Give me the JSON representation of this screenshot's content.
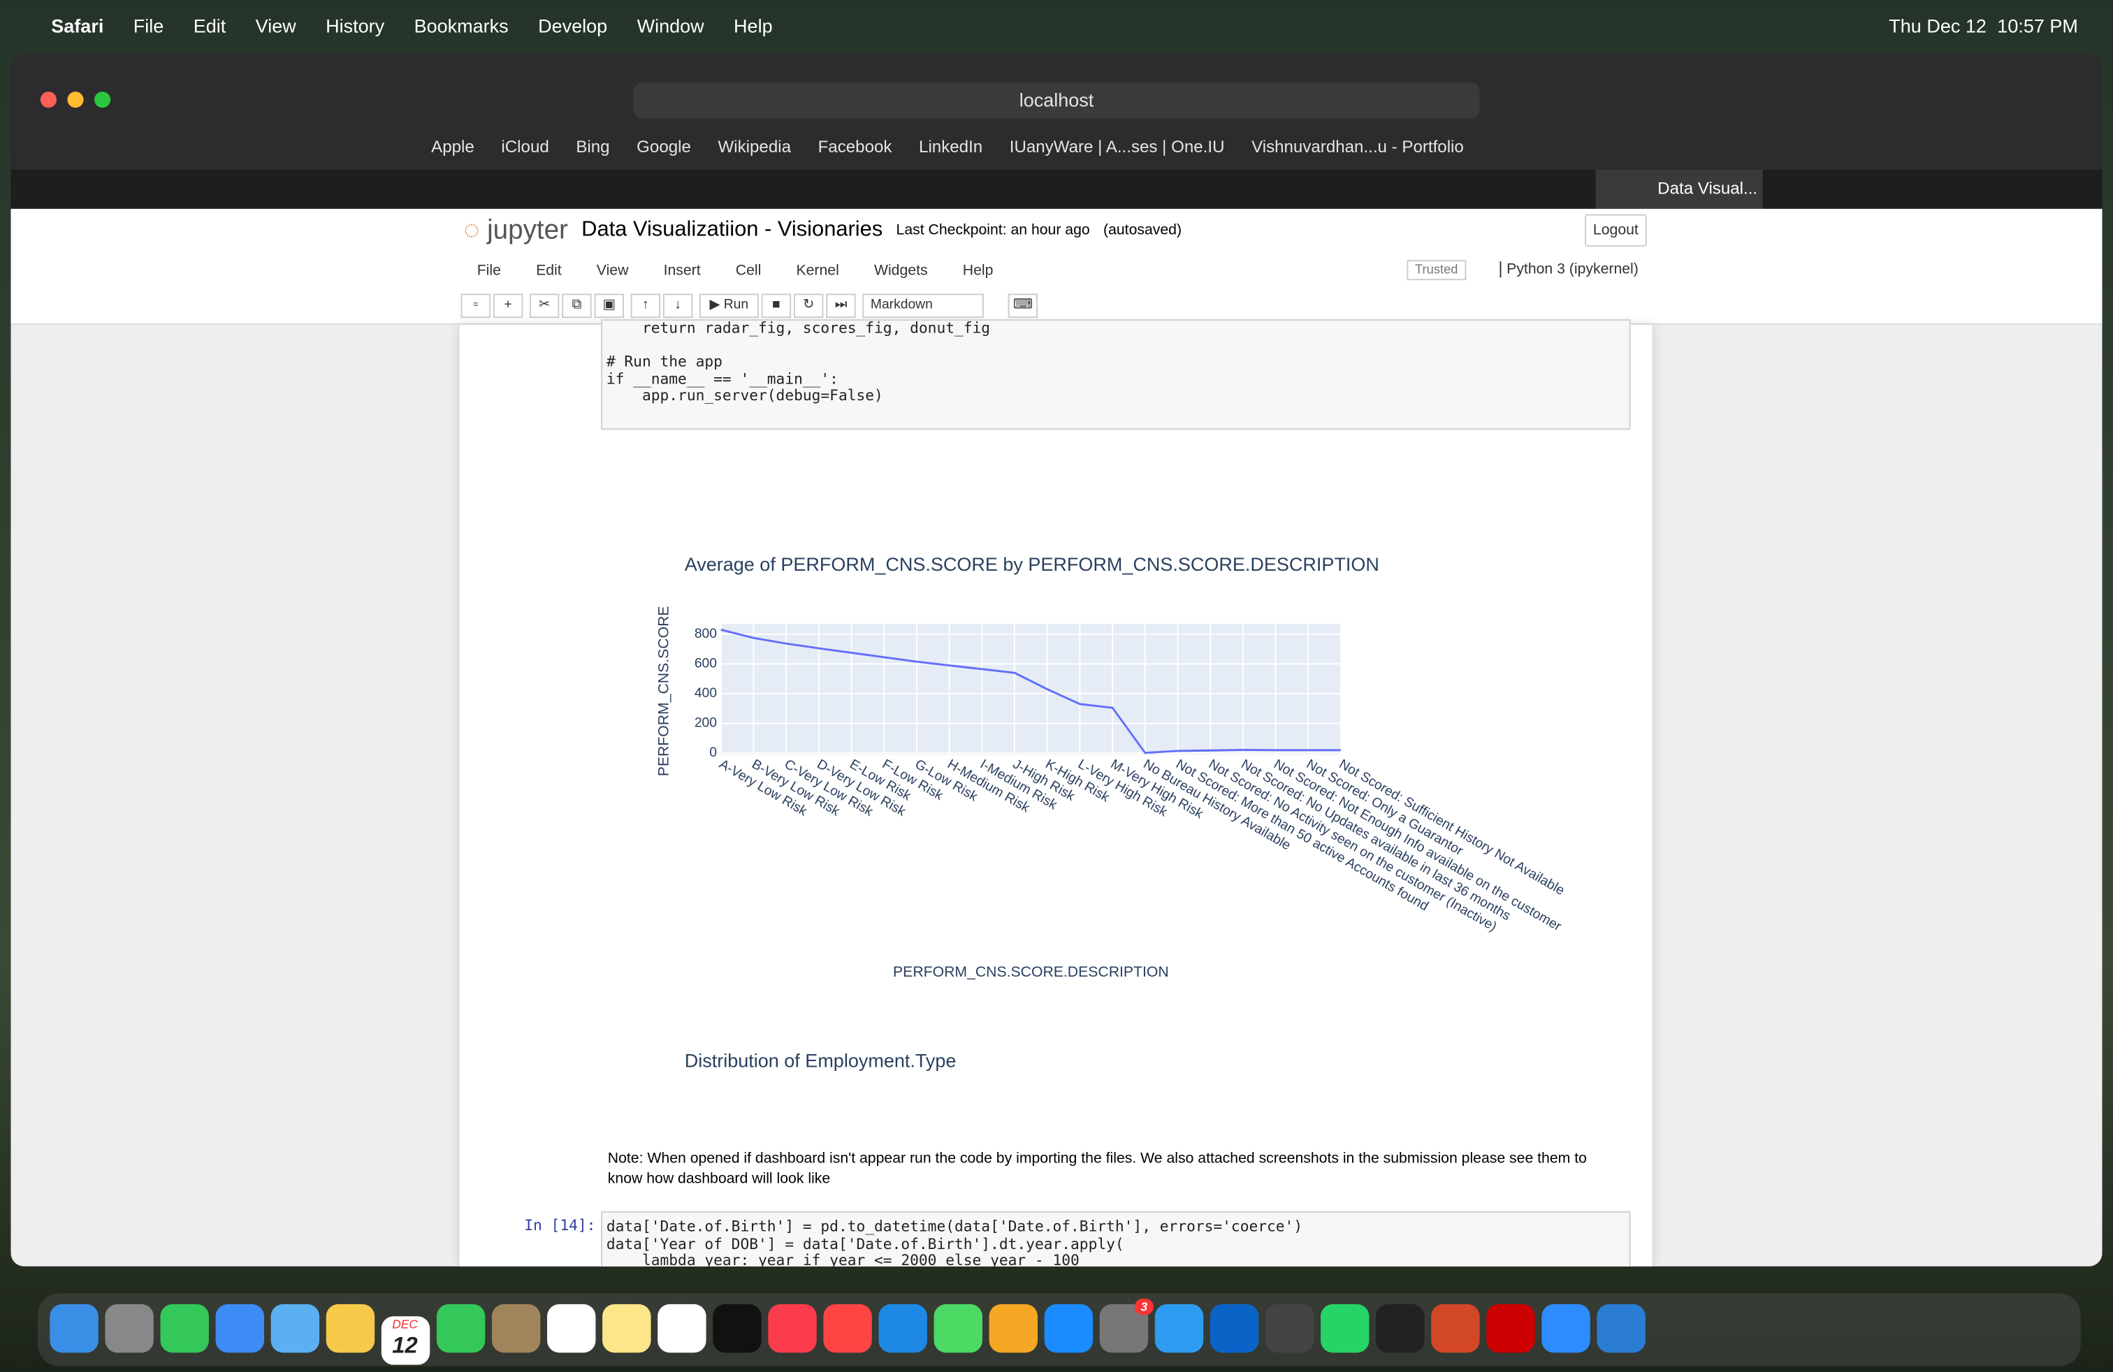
{
  "menubar": {
    "apple_menu": [
      "Safari",
      "File",
      "Edit",
      "View",
      "History",
      "Bookmarks",
      "Develop",
      "Window",
      "Help"
    ],
    "date": "Thu Dec 12",
    "time": "10:57 PM"
  },
  "browser": {
    "address": "localhost",
    "bookmarks": [
      "Apple",
      "iCloud",
      "Bing",
      "Google",
      "Wikipedia",
      "Facebook",
      "LinkedIn",
      "IUanyWare | A...ses | One.IU",
      "Vishnuvardhan...u - Portfolio"
    ],
    "active_tab": "Data Visual..."
  },
  "jupyter": {
    "logo": "jupyter",
    "notebook_title": "Data Visualizatiion - Visionaries",
    "checkpoint": "Last Checkpoint: an hour ago",
    "autosaved": "(autosaved)",
    "logout": "Logout",
    "menu": [
      "File",
      "Edit",
      "View",
      "Insert",
      "Cell",
      "Kernel",
      "Widgets",
      "Help"
    ],
    "trusted": "Trusted",
    "kernel": "Python 3 (ipykernel)",
    "run": "Run",
    "cell_type": "Markdown"
  },
  "notebook": {
    "code_cell_top": [
      "    return radar_fig, scores_fig, donut_fig",
      "",
      "# Run the app",
      "if __name__ == '__main__':",
      "    app.run_server(debug=False)"
    ],
    "second_chart_title": "Distribution of Employment.Type",
    "note": "Note: When opened if dashboard isn't appear run the code by importing the files. We also attached screenshots in the submission please see them to know how dashboard will look like",
    "prompt": "In [14]:",
    "code_cell_bottom": [
      "data['Date.of.Birth'] = pd.to_datetime(data['Date.of.Birth'], errors='coerce')",
      "data['Year of DOB'] = data['Date.of.Birth'].dt.year.apply(",
      "    lambda year: year if year <= 2000 else year - 100"
    ]
  },
  "dock": {
    "calendar_month": "DEC",
    "calendar_day": "12",
    "settings_badge": "3"
  },
  "chart_data": {
    "type": "line",
    "title": "Average of PERFORM_CNS.SCORE by PERFORM_CNS.SCORE.DESCRIPTION",
    "x_label": "PERFORM_CNS.SCORE.DESCRIPTION",
    "y_label": "PERFORM_CNS.SCORE",
    "categories": [
      "A-Very Low Risk",
      "B-Very Low Risk",
      "C-Very Low Risk",
      "D-Very Low Risk",
      "E-Low Risk",
      "F-Low Risk",
      "G-Low Risk",
      "H-Medium Risk",
      "I-Medium Risk",
      "J-High Risk",
      "K-High Risk",
      "L-Very High Risk",
      "M-Very High Risk",
      "No Bureau History Available",
      "Not Scored: More than 50 active Accounts found",
      "Not Scored: No Activity seen on the customer (Inactive)",
      "Not Scored: No Updates available in last 36 months",
      "Not Scored: Not Enough Info available on the customer",
      "Not Scored: Only a Guarantor",
      "Not Scored: Sufficient History Not Available"
    ],
    "series": [
      {
        "name": "PERFORM_CNS.SCORE",
        "color": "#636efa",
        "values": [
          830,
          775,
          737,
          705,
          675,
          645,
          615,
          590,
          565,
          540,
          430,
          330,
          305,
          2,
          15,
          18,
          22,
          20,
          20,
          20
        ]
      }
    ],
    "ylim": [
      0,
      870
    ],
    "yticks": [
      0,
      200,
      400,
      600,
      800
    ],
    "grid": true
  }
}
